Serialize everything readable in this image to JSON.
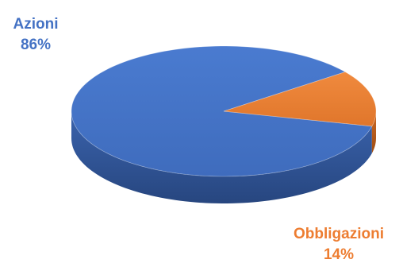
{
  "chart_data": {
    "type": "pie",
    "style": "3d",
    "title": "",
    "slices": [
      {
        "label": "Azioni",
        "value": 86,
        "value_label": "86%",
        "color": "#4472C4"
      },
      {
        "label": "Obbligazioni",
        "value": 14,
        "value_label": "14%",
        "color": "#ED7D31"
      }
    ],
    "legend": "none",
    "data_labels": "outside"
  }
}
